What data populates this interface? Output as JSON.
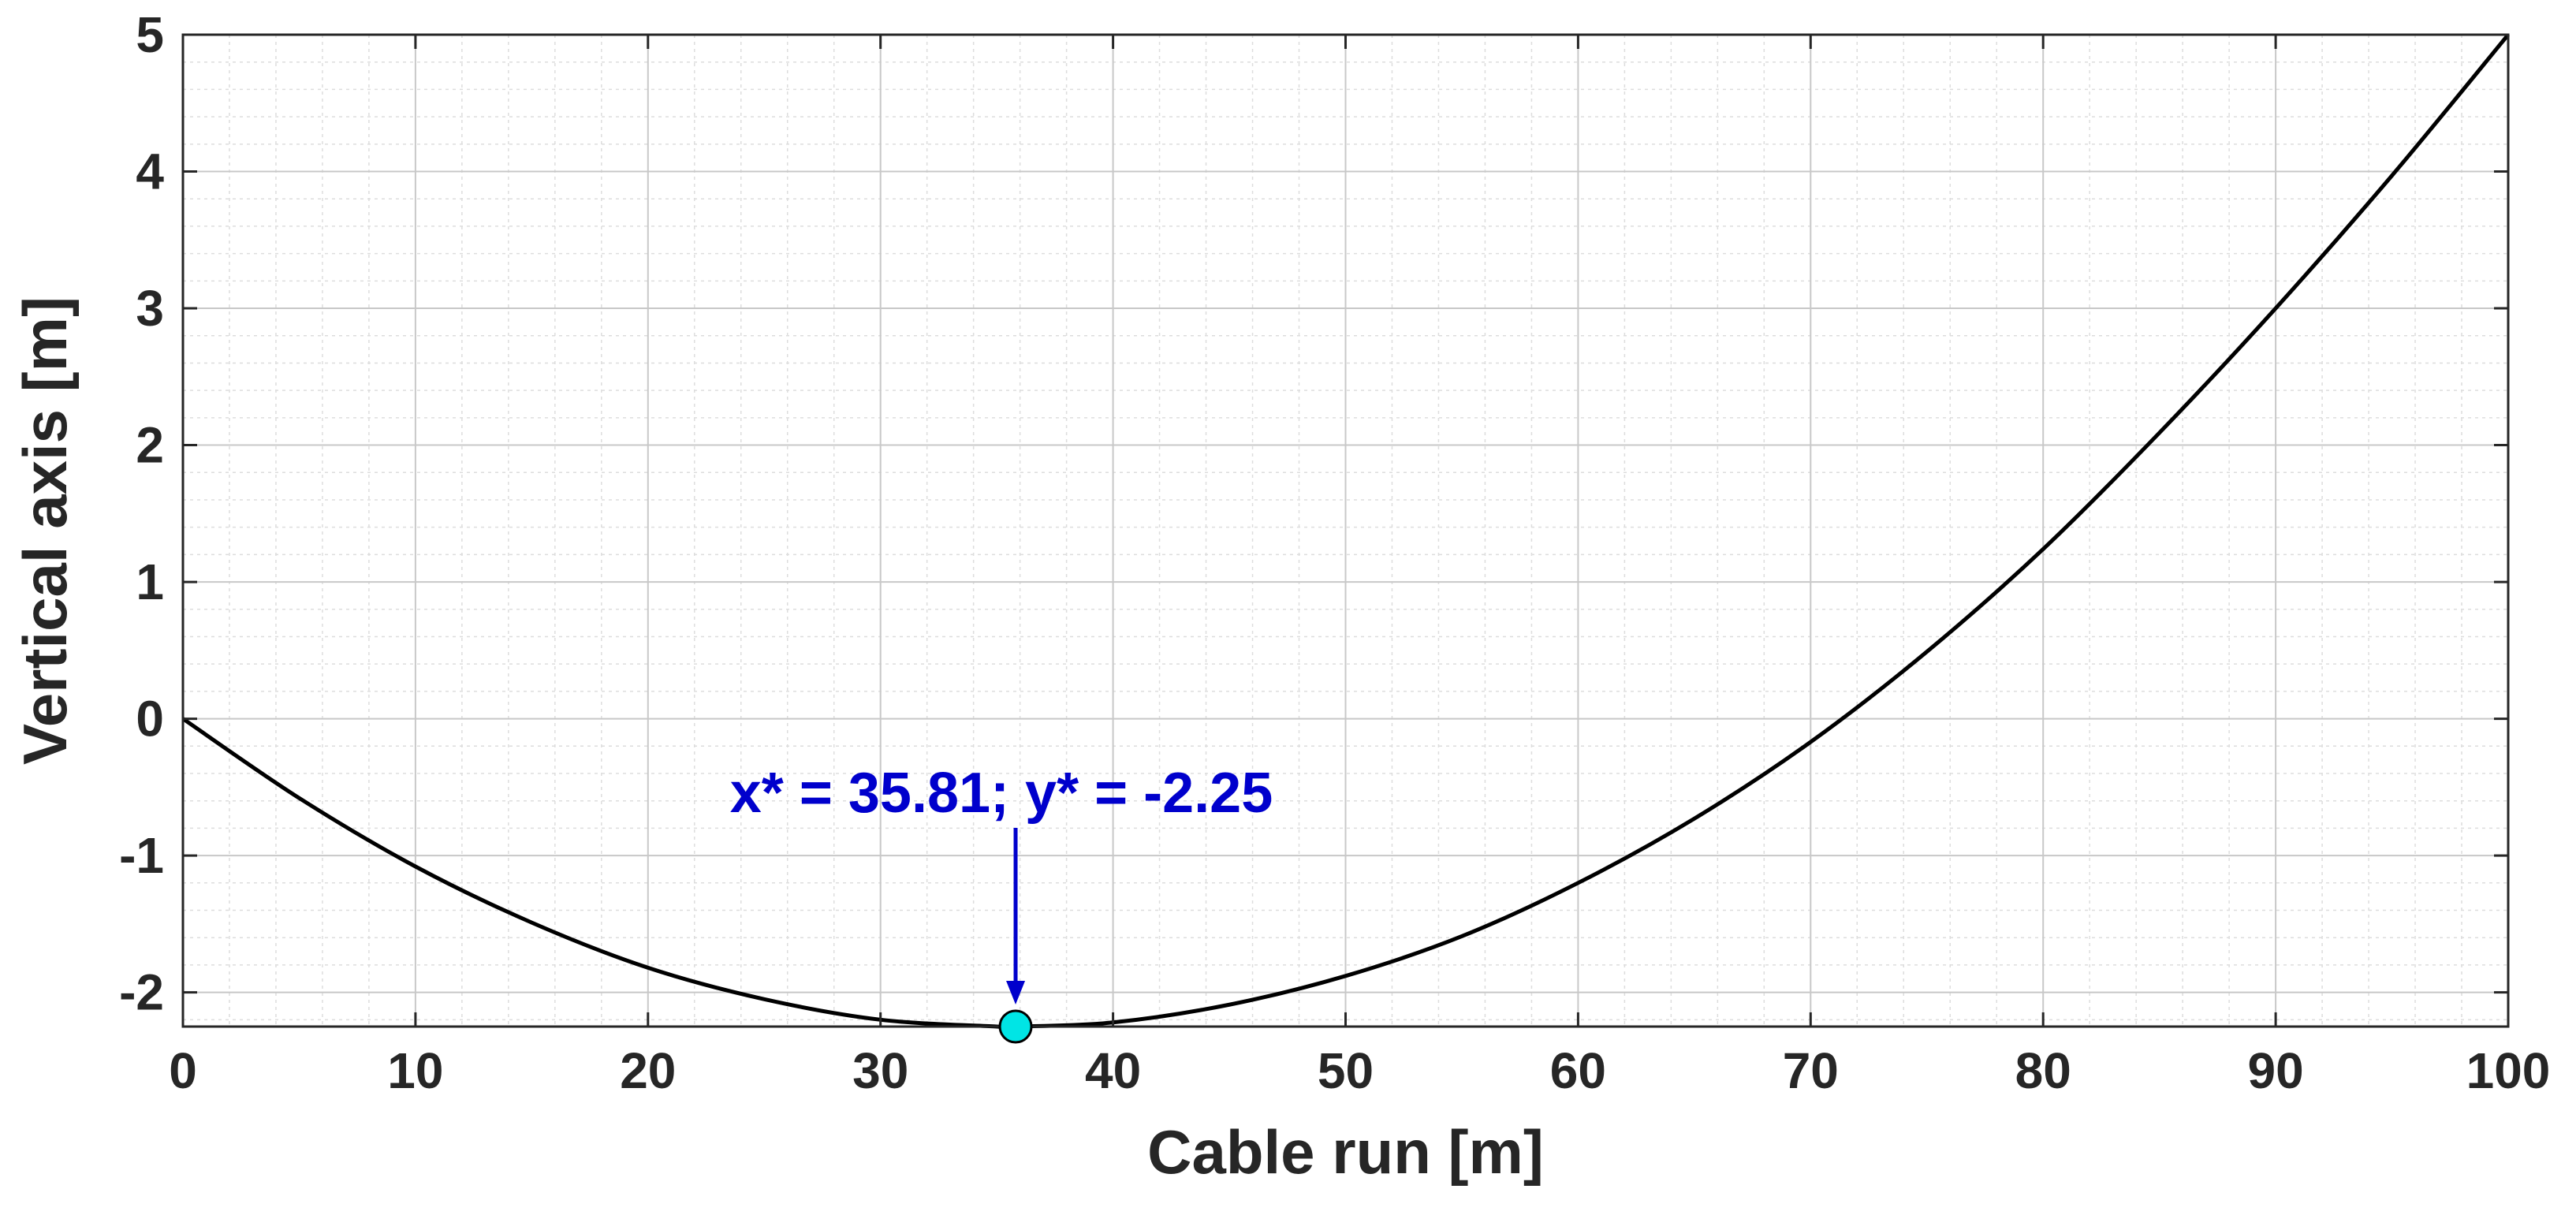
{
  "chart_data": {
    "type": "line",
    "title": "",
    "xlabel": "Cable run [m]",
    "ylabel": "Vertical axis [m]",
    "xlim": [
      0,
      100
    ],
    "ylim": [
      -2.25,
      5
    ],
    "xticks": [
      0,
      10,
      20,
      30,
      40,
      50,
      60,
      70,
      80,
      90,
      100
    ],
    "xtick_labels": [
      "0",
      "10",
      "20",
      "30",
      "40",
      "50",
      "60",
      "70",
      "80",
      "90",
      "100"
    ],
    "yticks": [
      -2,
      -1,
      0,
      1,
      2,
      3,
      4,
      5
    ],
    "ytick_labels": [
      "-2",
      "-1",
      "0",
      "1",
      "2",
      "3",
      "4",
      "5"
    ],
    "grid": true,
    "minor_grid": true,
    "series": [
      {
        "color": "#000000",
        "x": [
          0,
          5,
          10,
          15,
          20,
          25,
          30,
          35,
          35.81,
          40,
          45,
          50,
          55,
          60,
          65,
          70,
          75,
          80,
          85,
          90,
          95,
          100
        ],
        "y": [
          0,
          -0.58,
          -1.08,
          -1.49,
          -1.82,
          -2.05,
          -2.2,
          -2.25,
          -2.25,
          -2.22,
          -2.09,
          -1.88,
          -1.59,
          -1.2,
          -0.73,
          -0.17,
          0.49,
          1.24,
          2.09,
          3.0,
          3.97,
          5.0
        ]
      }
    ],
    "marker": {
      "x": 35.81,
      "y": -2.25,
      "color": "#00e5e5"
    },
    "annotation": {
      "text": "x* = 35.81; y* = -2.25",
      "x": 35.81,
      "y": -2.25,
      "color": "#0000cc"
    }
  }
}
